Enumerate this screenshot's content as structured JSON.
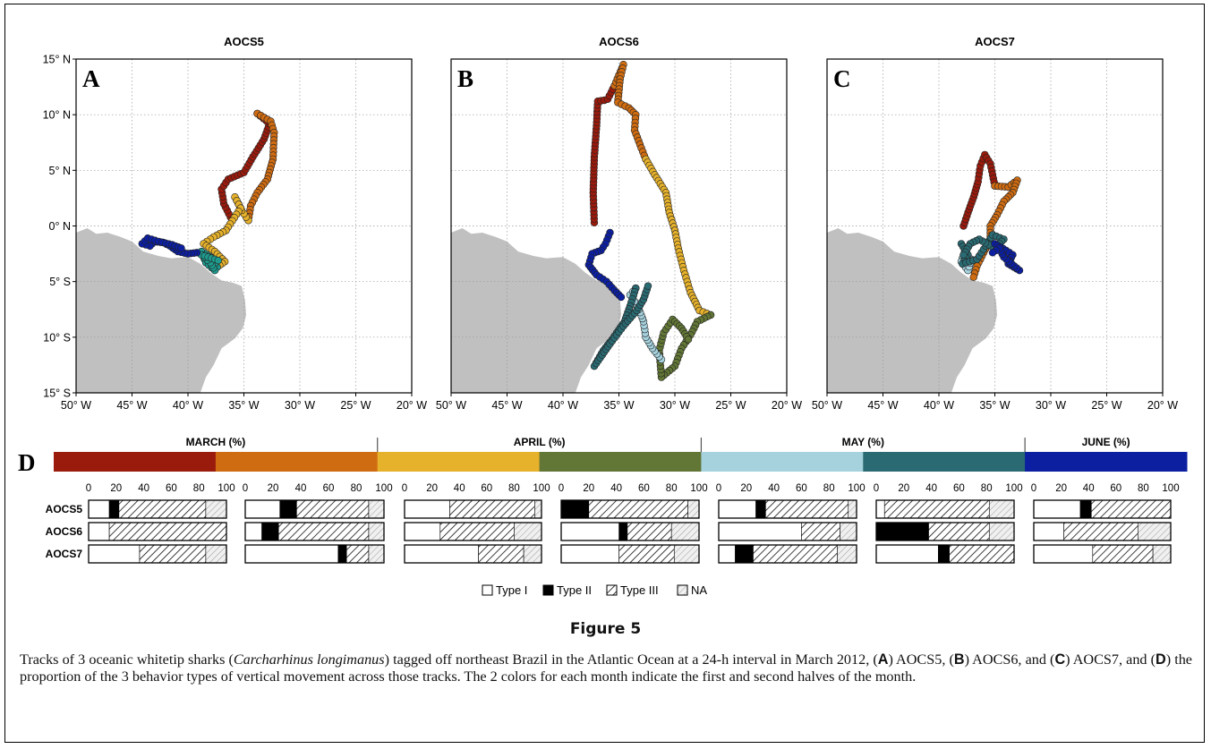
{
  "figure": {
    "title": "Figure 5",
    "caption": [
      {
        "t": "Tracks of 3 oceanic whitetip sharks ("
      },
      {
        "t": "Carcharhinus longimanus",
        "i": true
      },
      {
        "t": ") tagged off northeast Brazil in the Atlantic Ocean at a 24-h interval in March 2012, ("
      },
      {
        "t": "A",
        "b": true
      },
      {
        "t": ") AOCS5, ("
      },
      {
        "t": "B",
        "b": true
      },
      {
        "t": ") AOCS6, and ("
      },
      {
        "t": "C",
        "b": true
      },
      {
        "t": ") AOCS7, and ("
      },
      {
        "t": "D",
        "b": true
      },
      {
        "t": ") the proportion of the 3 behavior types of vertical movement across those tracks. The 2 colors for each month indicate the first and second halves of the month."
      }
    ]
  },
  "colors": {
    "mar1": "#9a1a0c",
    "mar2": "#cf6c12",
    "apr1": "#e6b12b",
    "apr2": "#627636",
    "may1": "#a6d2de",
    "may2": "#2a6a72",
    "jun": "#0c1fa0",
    "land": "#c0c0c0",
    "mid_teal": "#1e9b8e"
  },
  "maps": {
    "lon_ticks": [
      "50° W",
      "45° W",
      "40° W",
      "35° W",
      "30° W",
      "25° W",
      "20° W"
    ],
    "lat_ticks": [
      "15° N",
      "10° N",
      "5° N",
      "0° N",
      "5° S",
      "10° S",
      "15° S"
    ],
    "lon_range": [
      -50,
      -20
    ],
    "lat_range": [
      -15,
      15
    ],
    "panels": [
      {
        "id": "AOCS5",
        "letter": "A",
        "tracks": [
          {
            "color": "mar1",
            "pts": [
              [
                -36.2,
                0.8
              ],
              [
                -36.8,
                2.0
              ],
              [
                -37.0,
                3.3
              ],
              [
                -36.4,
                4.2
              ],
              [
                -35.0,
                4.8
              ],
              [
                -34.2,
                6.2
              ],
              [
                -33.2,
                7.8
              ],
              [
                -32.7,
                9.2
              ],
              [
                -33.8,
                10.1
              ]
            ]
          },
          {
            "color": "mar2",
            "pts": [
              [
                -33.8,
                10.1
              ],
              [
                -32.6,
                9.4
              ],
              [
                -32.3,
                8.4
              ],
              [
                -32.4,
                6.0
              ],
              [
                -32.9,
                4.2
              ],
              [
                -33.8,
                3.0
              ],
              [
                -34.4,
                1.8
              ],
              [
                -34.6,
                0.5
              ]
            ]
          },
          {
            "color": "apr1",
            "pts": [
              [
                -34.6,
                0.5
              ],
              [
                -35.2,
                1.4
              ],
              [
                -35.8,
                2.6
              ],
              [
                -35.3,
                1.6
              ],
              [
                -36.6,
                -0.4
              ],
              [
                -37.7,
                -1.0
              ],
              [
                -38.6,
                -1.6
              ],
              [
                -37.6,
                -2.3
              ],
              [
                -36.7,
                -3.2
              ],
              [
                -37.4,
                -3.7
              ]
            ]
          },
          {
            "color": "mid_teal",
            "pts": [
              [
                -37.4,
                -3.7
              ],
              [
                -38.0,
                -2.8
              ],
              [
                -38.8,
                -2.3
              ],
              [
                -38.4,
                -3.3
              ],
              [
                -37.6,
                -4.0
              ],
              [
                -38.0,
                -3.3
              ],
              [
                -38.8,
                -2.6
              ],
              [
                -37.3,
                -3.1
              ]
            ]
          },
          {
            "color": "jun",
            "pts": [
              [
                -39.2,
                -2.4
              ],
              [
                -40.0,
                -2.5
              ],
              [
                -40.9,
                -2.3
              ],
              [
                -41.6,
                -1.8
              ],
              [
                -42.2,
                -1.5
              ],
              [
                -43.0,
                -1.4
              ],
              [
                -43.4,
                -1.8
              ],
              [
                -44.1,
                -1.6
              ],
              [
                -43.6,
                -1.1
              ],
              [
                -42.6,
                -1.4
              ],
              [
                -41.4,
                -1.7
              ],
              [
                -40.6,
                -2.0
              ]
            ]
          }
        ]
      },
      {
        "id": "AOCS6",
        "letter": "B",
        "tracks": [
          {
            "color": "mar1",
            "pts": [
              [
                -37.2,
                0.3
              ],
              [
                -37.3,
                3.0
              ],
              [
                -37.2,
                6.2
              ],
              [
                -37.0,
                9.0
              ],
              [
                -36.9,
                11.2
              ],
              [
                -36.3,
                11.3
              ],
              [
                -36.0,
                11.4
              ],
              [
                -35.4,
                12.6
              ]
            ]
          },
          {
            "color": "mar2",
            "pts": [
              [
                -35.4,
                12.6
              ],
              [
                -34.6,
                14.5
              ],
              [
                -34.9,
                13.2
              ],
              [
                -35.1,
                11.1
              ],
              [
                -34.1,
                10.6
              ],
              [
                -33.5,
                10.0
              ],
              [
                -33.6,
                8.6
              ],
              [
                -33.0,
                7.0
              ],
              [
                -32.6,
                6.0
              ]
            ]
          },
          {
            "color": "apr1",
            "pts": [
              [
                -32.6,
                6.0
              ],
              [
                -31.8,
                4.6
              ],
              [
                -30.8,
                3.0
              ],
              [
                -30.5,
                1.2
              ],
              [
                -30.0,
                -0.4
              ],
              [
                -29.7,
                -2.0
              ],
              [
                -29.2,
                -4.0
              ],
              [
                -28.6,
                -6.0
              ],
              [
                -27.8,
                -7.6
              ],
              [
                -26.8,
                -8.0
              ]
            ]
          },
          {
            "color": "apr2",
            "pts": [
              [
                -26.8,
                -8.0
              ],
              [
                -28.0,
                -8.6
              ],
              [
                -28.6,
                -9.8
              ],
              [
                -29.4,
                -11.0
              ],
              [
                -30.0,
                -12.6
              ],
              [
                -31.2,
                -13.6
              ],
              [
                -31.4,
                -11.2
              ],
              [
                -31.0,
                -9.6
              ],
              [
                -30.2,
                -8.4
              ],
              [
                -29.4,
                -9.2
              ],
              [
                -28.8,
                -10.2
              ]
            ]
          },
          {
            "color": "may1",
            "pts": [
              [
                -31.2,
                -12.0
              ],
              [
                -32.0,
                -11.0
              ],
              [
                -32.6,
                -10.0
              ],
              [
                -32.8,
                -8.6
              ],
              [
                -33.2,
                -7.5
              ],
              [
                -33.6,
                -6.8
              ],
              [
                -34.0,
                -6.2
              ],
              [
                -33.5,
                -5.6
              ]
            ]
          },
          {
            "color": "may2",
            "pts": [
              [
                -33.5,
                -5.6
              ],
              [
                -34.0,
                -7.2
              ],
              [
                -34.5,
                -8.6
              ],
              [
                -35.2,
                -9.6
              ],
              [
                -35.6,
                -10.2
              ],
              [
                -36.4,
                -11.2
              ],
              [
                -37.2,
                -12.6
              ],
              [
                -35.8,
                -10.6
              ],
              [
                -34.6,
                -9.0
              ],
              [
                -33.4,
                -7.6
              ],
              [
                -32.8,
                -6.6
              ],
              [
                -32.4,
                -5.4
              ]
            ]
          },
          {
            "color": "jun",
            "pts": [
              [
                -35.8,
                -0.6
              ],
              [
                -36.2,
                -1.6
              ],
              [
                -36.6,
                -2.2
              ],
              [
                -37.4,
                -2.5
              ],
              [
                -37.7,
                -3.5
              ],
              [
                -37.0,
                -4.4
              ],
              [
                -36.1,
                -5.0
              ],
              [
                -35.4,
                -5.8
              ],
              [
                -34.8,
                -6.4
              ]
            ]
          }
        ]
      },
      {
        "id": "AOCS7",
        "letter": "C",
        "tracks": [
          {
            "color": "mar1",
            "pts": [
              [
                -37.8,
                0.0
              ],
              [
                -37.4,
                1.2
              ],
              [
                -36.9,
                2.6
              ],
              [
                -36.5,
                4.0
              ],
              [
                -36.3,
                5.4
              ],
              [
                -35.9,
                6.4
              ],
              [
                -35.4,
                5.6
              ],
              [
                -35.2,
                4.6
              ],
              [
                -35.0,
                3.6
              ]
            ]
          },
          {
            "color": "mar2",
            "pts": [
              [
                -35.0,
                3.6
              ],
              [
                -33.8,
                3.5
              ],
              [
                -33.0,
                4.1
              ],
              [
                -33.4,
                3.0
              ],
              [
                -34.2,
                2.2
              ],
              [
                -34.8,
                1.0
              ],
              [
                -35.4,
                0.0
              ],
              [
                -35.4,
                -1.2
              ],
              [
                -36.0,
                -2.4
              ],
              [
                -36.6,
                -3.6
              ],
              [
                -36.9,
                -4.6
              ]
            ]
          },
          {
            "color": "may1",
            "pts": [
              [
                -37.6,
                -2.0
              ],
              [
                -38.0,
                -3.2
              ],
              [
                -37.4,
                -4.0
              ],
              [
                -37.1,
                -3.0
              ]
            ]
          },
          {
            "color": "may2",
            "pts": [
              [
                -38.0,
                -1.6
              ],
              [
                -37.4,
                -2.6
              ],
              [
                -37.9,
                -3.4
              ],
              [
                -36.6,
                -3.0
              ],
              [
                -35.8,
                -1.8
              ],
              [
                -35.2,
                -0.8
              ],
              [
                -34.2,
                -1.2
              ],
              [
                -35.0,
                -2.0
              ],
              [
                -36.4,
                -1.2
              ],
              [
                -37.2,
                -1.6
              ],
              [
                -37.8,
                -2.6
              ]
            ]
          },
          {
            "color": "jun",
            "pts": [
              [
                -35.0,
                -1.6
              ],
              [
                -34.0,
                -2.2
              ],
              [
                -33.4,
                -2.6
              ],
              [
                -33.8,
                -3.4
              ],
              [
                -32.8,
                -4.0
              ],
              [
                -34.2,
                -2.8
              ],
              [
                -34.6,
                -2.0
              ],
              [
                -35.2,
                -2.4
              ]
            ]
          }
        ]
      }
    ]
  },
  "months": {
    "labels": [
      "MARCH (%)",
      "APRIL (%)",
      "MAY (%)",
      "JUNE (%)"
    ],
    "bar_colors": [
      "mar1",
      "mar2",
      "apr1",
      "apr2",
      "may1",
      "may2",
      "jun"
    ]
  },
  "chart_data": {
    "type": "bar",
    "orientation": "horizontal",
    "stacked": true,
    "panel_label": "D",
    "x_ticks": [
      "0",
      "20",
      "40",
      "60",
      "80",
      "100"
    ],
    "xlim": [
      0,
      100
    ],
    "rows": [
      "AOCS5",
      "AOCS6",
      "AOCS7"
    ],
    "segments": [
      "Type I",
      "Type II",
      "Type III",
      "NA"
    ],
    "legend": [
      "Type I",
      "Type II",
      "Type III",
      "NA"
    ],
    "legend_position": "bottom",
    "periods": [
      {
        "values": [
          [
            15,
            7,
            63,
            15
          ],
          [
            15,
            0,
            85,
            0
          ],
          [
            37,
            0,
            48,
            15
          ]
        ]
      },
      {
        "values": [
          [
            25,
            12,
            52,
            11
          ],
          [
            12,
            12,
            65,
            11
          ],
          [
            67,
            6,
            16,
            11
          ]
        ]
      },
      {
        "values": [
          [
            33,
            0,
            62,
            5
          ],
          [
            26,
            0,
            54,
            20
          ],
          [
            54,
            0,
            33,
            13
          ]
        ]
      },
      {
        "values": [
          [
            0,
            20,
            72,
            8
          ],
          [
            42,
            6,
            32,
            20
          ],
          [
            42,
            0,
            40,
            18
          ]
        ]
      },
      {
        "values": [
          [
            27,
            7,
            60,
            6
          ],
          [
            60,
            0,
            28,
            12
          ],
          [
            12,
            13,
            61,
            14
          ]
        ]
      },
      {
        "values": [
          [
            6,
            0,
            76,
            18
          ],
          [
            0,
            38,
            44,
            18
          ],
          [
            45,
            8,
            47,
            0
          ]
        ]
      },
      {
        "values": [
          [
            34,
            8,
            58,
            0
          ],
          [
            22,
            0,
            54,
            24
          ],
          [
            43,
            0,
            44,
            13
          ]
        ]
      }
    ]
  }
}
